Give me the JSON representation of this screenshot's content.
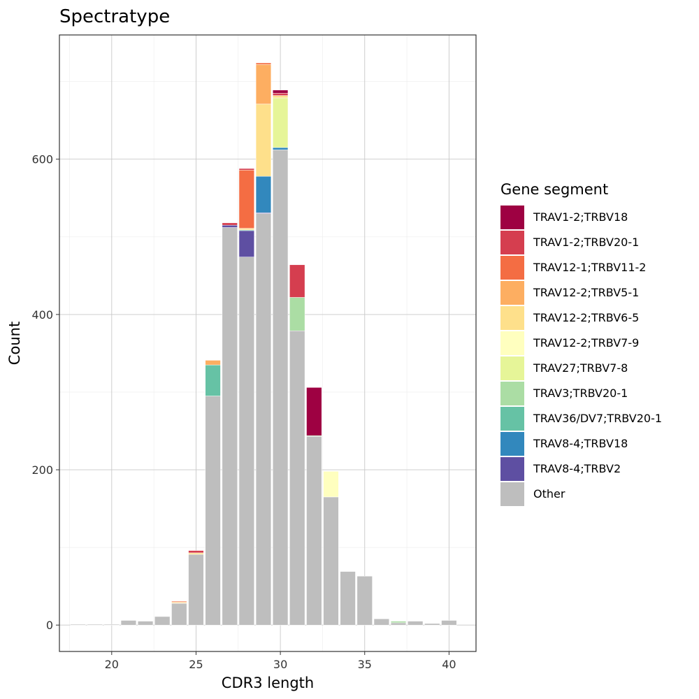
{
  "chart_data": {
    "type": "bar",
    "stacked": true,
    "title": "Spectratype",
    "xlabel": "CDR3 length",
    "ylabel": "Count",
    "xlim": [
      16.9,
      41.6
    ],
    "ylim": [
      -34,
      760
    ],
    "xticks": [
      20,
      25,
      30,
      35,
      40
    ],
    "yticks": [
      0,
      200,
      400,
      600
    ],
    "grid": true,
    "legend": {
      "title": "Gene segment",
      "position": "right"
    },
    "x": [
      18,
      19,
      20,
      21,
      22,
      23,
      24,
      25,
      26,
      27,
      28,
      29,
      30,
      31,
      32,
      33,
      34,
      35,
      36,
      37,
      38,
      39,
      40
    ],
    "series": [
      {
        "name": "Other",
        "color": "#BEBEBE",
        "values": [
          1,
          1,
          1,
          6,
          5,
          11,
          28,
          91,
          295,
          512,
          474,
          530,
          612,
          379,
          243,
          165,
          69,
          63,
          8,
          3,
          5,
          2,
          6
        ]
      },
      {
        "name": "TRAV8-4;TRBV2",
        "color": "#5E4FA2",
        "values": [
          0,
          0,
          0,
          0,
          0,
          0,
          0,
          0,
          0,
          3,
          34,
          1,
          0,
          0,
          0,
          0,
          0,
          0,
          0,
          0,
          0,
          0,
          0
        ]
      },
      {
        "name": "TRAV8-4;TRBV18",
        "color": "#3288BD",
        "values": [
          0,
          0,
          0,
          0,
          0,
          0,
          0,
          0,
          0,
          0,
          0,
          47,
          3,
          0,
          0,
          0,
          0,
          0,
          0,
          0,
          0,
          0,
          0
        ]
      },
      {
        "name": "TRAV36/DV7;TRBV20-1",
        "color": "#66C2A5",
        "values": [
          0,
          0,
          0,
          0,
          0,
          0,
          0,
          0,
          40,
          0,
          1,
          0,
          0,
          0,
          0,
          0,
          0,
          0,
          0,
          0,
          0,
          0,
          0
        ]
      },
      {
        "name": "TRAV3;TRBV20-1",
        "color": "#ABDDA4",
        "values": [
          0,
          0,
          0,
          0,
          0,
          0,
          0,
          0,
          0,
          0,
          0,
          0,
          0,
          43,
          1,
          0,
          0,
          0,
          0,
          2,
          0,
          0,
          0
        ]
      },
      {
        "name": "TRAV27;TRBV7-8",
        "color": "#E6F598",
        "values": [
          0,
          0,
          0,
          0,
          0,
          0,
          0,
          0,
          0,
          0,
          0,
          0,
          64,
          0,
          0,
          0,
          0,
          0,
          0,
          0,
          0,
          0,
          0
        ]
      },
      {
        "name": "TRAV12-2;TRBV7-9",
        "color": "#FFFFBF",
        "values": [
          0,
          0,
          0,
          0,
          0,
          0,
          0,
          0,
          0,
          0,
          0,
          0,
          0,
          0,
          0,
          33,
          0,
          0,
          0,
          0,
          0,
          0,
          0
        ]
      },
      {
        "name": "TRAV12-2;TRBV6-5",
        "color": "#FEE08B",
        "values": [
          0,
          0,
          0,
          0,
          0,
          0,
          1,
          2,
          0,
          0,
          2,
          93,
          3,
          0,
          0,
          0,
          0,
          0,
          0,
          0,
          0,
          0,
          0
        ]
      },
      {
        "name": "TRAV12-2;TRBV5-1",
        "color": "#FDAE61",
        "values": [
          0,
          0,
          0,
          0,
          0,
          0,
          1,
          0,
          6,
          0,
          0,
          51,
          0,
          0,
          0,
          0,
          0,
          0,
          0,
          0,
          0,
          0,
          0
        ]
      },
      {
        "name": "TRAV12-1;TRBV11-2",
        "color": "#F46D43",
        "values": [
          0,
          0,
          0,
          0,
          0,
          0,
          1,
          0,
          0,
          0,
          75,
          2,
          0,
          0,
          0,
          0,
          0,
          0,
          0,
          0,
          0,
          0,
          0
        ]
      },
      {
        "name": "TRAV1-2;TRBV20-1",
        "color": "#D53E4F",
        "values": [
          0,
          0,
          0,
          0,
          0,
          0,
          0,
          3,
          0,
          3,
          2,
          0,
          3,
          42,
          0,
          0,
          0,
          0,
          0,
          0,
          0,
          0,
          0
        ]
      },
      {
        "name": "TRAV1-2;TRBV18",
        "color": "#9E0142",
        "values": [
          0,
          0,
          0,
          0,
          0,
          0,
          0,
          0,
          0,
          0,
          0,
          0,
          4,
          0,
          62,
          0,
          0,
          0,
          0,
          0,
          0,
          0,
          0
        ]
      }
    ],
    "legend_order": [
      "TRAV1-2;TRBV18",
      "TRAV1-2;TRBV20-1",
      "TRAV12-1;TRBV11-2",
      "TRAV12-2;TRBV5-1",
      "TRAV12-2;TRBV6-5",
      "TRAV12-2;TRBV7-9",
      "TRAV27;TRBV7-8",
      "TRAV3;TRBV20-1",
      "TRAV36/DV7;TRBV20-1",
      "TRAV8-4;TRBV18",
      "TRAV8-4;TRBV2",
      "Other"
    ]
  }
}
